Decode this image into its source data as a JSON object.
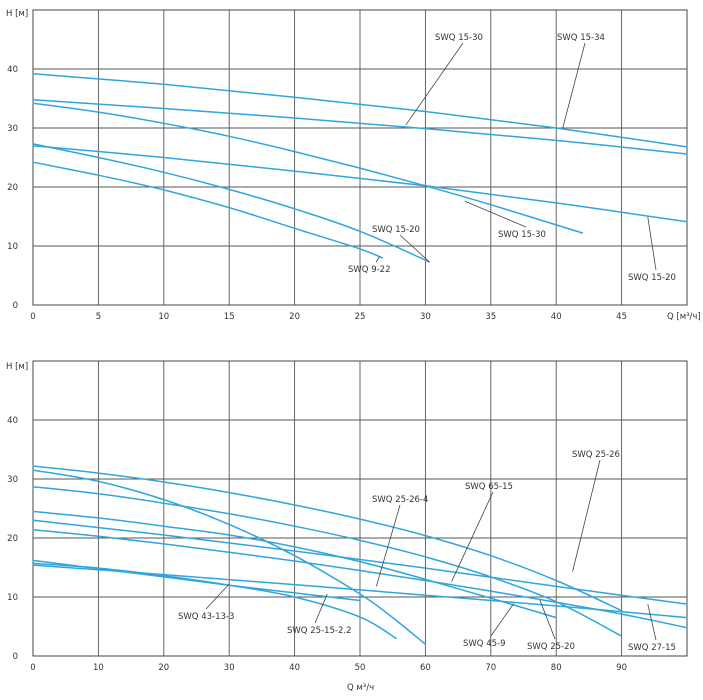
{
  "colors": {
    "curve": "#2fa6dc",
    "grid": "#555555",
    "text": "#333333"
  },
  "chart_data": [
    {
      "type": "line",
      "title": "",
      "xlabel": "Q [м³/ч]",
      "ylabel": "H [м]",
      "xlim": [
        0,
        50
      ],
      "ylim": [
        0,
        50
      ],
      "x_ticks": [
        "0",
        "5",
        "10",
        "15",
        "20",
        "25",
        "30",
        "35",
        "40",
        "45"
      ],
      "y_ticks": [
        "0",
        "10",
        "20",
        "30",
        "40"
      ],
      "grid": true,
      "series": [
        {
          "name": "SWQ 9-22",
          "x": [
            0,
            5,
            10,
            15,
            20,
            25,
            26.7
          ],
          "y": [
            24.2,
            22,
            19.5,
            16.5,
            13,
            9.5,
            8
          ]
        },
        {
          "name": "SWQ 15-20",
          "x": [
            0,
            5,
            10,
            15,
            20,
            25,
            30.3
          ],
          "y": [
            27.3,
            25,
            22.5,
            19.6,
            16.3,
            12.5,
            7.3
          ]
        },
        {
          "name": "SWQ 15-30",
          "x": [
            0,
            5,
            10,
            15,
            20,
            25,
            30,
            35,
            42
          ],
          "y": [
            34.2,
            32.7,
            30.8,
            28.6,
            26,
            23.2,
            20.2,
            17,
            12.2
          ]
        },
        {
          "name": "SWQ 15-20",
          "x": [
            0,
            10,
            20,
            30,
            40,
            50
          ],
          "y": [
            27,
            25,
            22.7,
            20.2,
            17.3,
            14.1
          ]
        },
        {
          "name": "SWQ 15-30",
          "x": [
            0,
            10,
            20,
            30,
            40,
            50
          ],
          "y": [
            34.8,
            33.3,
            31.7,
            29.9,
            27.9,
            25.6
          ]
        },
        {
          "name": "SWQ 15-34",
          "x": [
            0,
            10,
            20,
            30,
            40,
            50
          ],
          "y": [
            39.2,
            37.4,
            35.2,
            32.8,
            30,
            26.8
          ]
        }
      ],
      "annotations": [
        {
          "text": "SWQ 15-30",
          "point": [
            28.5,
            30.5
          ]
        },
        {
          "text": "SWQ 15-34",
          "point": [
            40.5,
            30
          ]
        },
        {
          "text": "SWQ 15-20",
          "point": [
            30.3,
            7.3
          ]
        },
        {
          "text": "SWQ 15-30",
          "point": [
            33,
            17.6
          ]
        },
        {
          "text": "SWQ 9-22",
          "point": [
            26.5,
            8.2
          ]
        },
        {
          "text": "SWQ 15-20",
          "point": [
            47,
            14.9
          ]
        }
      ]
    },
    {
      "type": "line",
      "title": "",
      "xlabel": "Q м³/ч",
      "ylabel": "H [м]",
      "xlim": [
        0,
        100
      ],
      "ylim": [
        0,
        50
      ],
      "x_ticks": [
        "0",
        "10",
        "20",
        "30",
        "40",
        "50",
        "60",
        "70",
        "80",
        "90"
      ],
      "y_ticks": [
        "0",
        "10",
        "20",
        "30",
        "40"
      ],
      "grid": true,
      "series": [
        {
          "name": "SWQ 43-13-3",
          "x": [
            0,
            10,
            20,
            30,
            40,
            50,
            55.5
          ],
          "y": [
            15.7,
            14.9,
            13.6,
            12,
            10,
            6.6,
            3
          ]
        },
        {
          "name": "SWQ 25-15-2.2",
          "x": [
            0,
            10,
            20,
            30,
            40,
            50
          ],
          "y": [
            16.2,
            14.8,
            13.4,
            12,
            10.7,
            9.4
          ]
        },
        {
          "name": "SWQ 25-26-4",
          "x": [
            0,
            10,
            20,
            30,
            40,
            50,
            55,
            60
          ],
          "y": [
            31.5,
            29.6,
            26.5,
            22.3,
            17,
            10.5,
            6.5,
            2
          ]
        },
        {
          "name": "SWQ 65-15",
          "x": [
            0,
            10,
            20,
            30,
            40,
            50,
            60,
            70,
            80,
            90,
            100
          ],
          "y": [
            21.4,
            20.3,
            19,
            17.6,
            16.1,
            14.5,
            12.8,
            11,
            9.1,
            7.1,
            4.8
          ]
        },
        {
          "name": "SWQ 45-9",
          "x": [
            0,
            20,
            40,
            60,
            80,
            100
          ],
          "y": [
            15.4,
            13.8,
            12.1,
            10.3,
            8.5,
            6.5
          ]
        },
        {
          "name": "SWQ 25-20",
          "x": [
            0,
            10,
            20,
            30,
            40,
            50,
            60,
            70,
            80
          ],
          "y": [
            24.5,
            23.4,
            22,
            20.5,
            18.5,
            16,
            13,
            9.8,
            6.5
          ]
        },
        {
          "name": "SWQ 27-15",
          "x": [
            0,
            20,
            40,
            60,
            80,
            100
          ],
          "y": [
            23,
            20.5,
            17.8,
            14.9,
            11.8,
            8.8
          ]
        },
        {
          "name": "SWQ 25-26",
          "x": [
            0,
            10,
            20,
            30,
            40,
            50,
            60,
            70,
            80,
            90
          ],
          "y": [
            32.2,
            31,
            29.5,
            27.7,
            25.6,
            23.2,
            20.4,
            17,
            12.8,
            7.7
          ]
        },
        {
          "name": "",
          "x": [
            0,
            10,
            20,
            30,
            40,
            50,
            60,
            70,
            80,
            89.8
          ],
          "y": [
            28.7,
            27.5,
            25.9,
            24.1,
            22,
            19.6,
            16.8,
            13.4,
            9.2,
            3.5
          ]
        }
      ],
      "annotations": [
        {
          "text": "SWQ 25-26-4",
          "point": [
            52.5,
            11.8
          ]
        },
        {
          "text": "SWQ 65-15",
          "point": [
            64,
            12.6
          ]
        },
        {
          "text": "SWQ 25-26",
          "point": [
            82.5,
            14.3
          ]
        },
        {
          "text": "SWQ 43-13-3",
          "point": [
            30,
            12.2
          ]
        },
        {
          "text": "SWQ 25-15-2.2",
          "point": [
            45,
            10.5
          ]
        },
        {
          "text": "SWQ 45-9",
          "point": [
            73.5,
            8.9
          ]
        },
        {
          "text": "SWQ 25-20",
          "point": [
            77.5,
            9.5
          ]
        },
        {
          "text": "SWQ 27-15",
          "point": [
            94,
            8.8
          ]
        }
      ]
    }
  ]
}
